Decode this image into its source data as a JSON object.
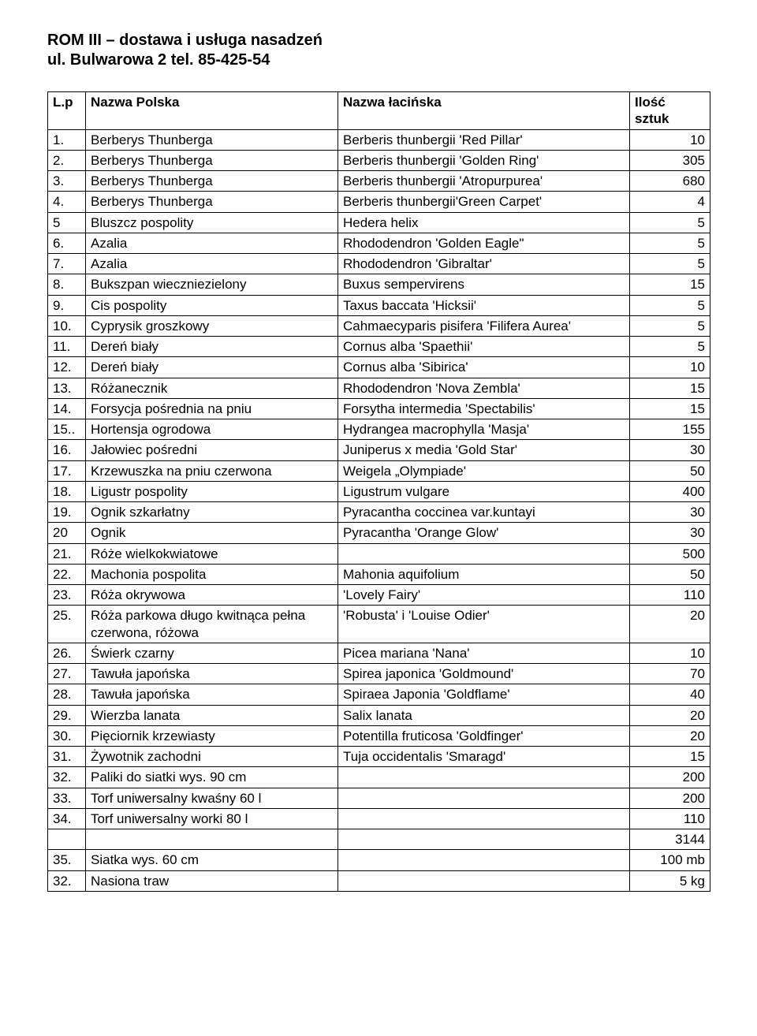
{
  "title_line1": "ROM III – dostawa i usługa nasadzeń",
  "title_line2": "ul. Bulwarowa 2    tel. 85-425-54",
  "columns": {
    "lp": "L.p",
    "pl": "Nazwa Polska",
    "la": "Nazwa łacińska",
    "qty1": "Ilość",
    "qty2": "sztuk"
  },
  "rows": [
    {
      "lp": "1.",
      "pl": "Berberys Thunberga",
      "la": "Berberis thunbergii 'Red Pillar'",
      "qty": "10"
    },
    {
      "lp": "2.",
      "pl": "Berberys Thunberga",
      "la": "Berberis thunbergii 'Golden Ring'",
      "qty": "305"
    },
    {
      "lp": "3.",
      "pl": "Berberys Thunberga",
      "la": "Berberis thunbergii 'Atropurpurea'",
      "qty": "680"
    },
    {
      "lp": "4.",
      "pl": "Berberys Thunberga",
      "la": "Berberis thunbergii'Green Carpet'",
      "qty": "4"
    },
    {
      "lp": "5",
      "pl": "Bluszcz pospolity",
      "la": "Hedera helix",
      "qty": "5"
    },
    {
      "lp": "6.",
      "pl": "Azalia",
      "la": "Rhododendron 'Golden Eagle\"",
      "qty": "5"
    },
    {
      "lp": "7.",
      "pl": "Azalia",
      "la": "Rhododendron 'Gibraltar'",
      "qty": "5"
    },
    {
      "lp": "8.",
      "pl": "Bukszpan wieczniezielony",
      "la": "Buxus sempervirens",
      "qty": "15"
    },
    {
      "lp": "9.",
      "pl": "Cis pospolity",
      "la": "Taxus baccata  'Hicksii'",
      "qty": "5"
    },
    {
      "lp": "10.",
      "pl": "Cyprysik groszkowy",
      "la": "Cahmaecyparis pisifera 'Filifera Aurea'",
      "qty": "5"
    },
    {
      "lp": "11.",
      "pl": "Dereń biały",
      "la": "Cornus alba 'Spaethii'",
      "qty": "5"
    },
    {
      "lp": "12.",
      "pl": "Dereń biały",
      "la": "Cornus alba 'Sibirica'",
      "qty": "10"
    },
    {
      "lp": "13.",
      "pl": "Różanecznik",
      "la": "Rhododendron 'Nova Zembla'",
      "qty": "15"
    },
    {
      "lp": "14.",
      "pl": "Forsycja pośrednia na pniu",
      "la": "Forsytha intermedia 'Spectabilis'",
      "qty": "15"
    },
    {
      "lp": "15..",
      "pl": "Hortensja ogrodowa",
      "la": "Hydrangea macrophylla 'Masja'",
      "qty": "155"
    },
    {
      "lp": "16.",
      "pl": "Jałowiec pośredni",
      "la": "Juniperus x media 'Gold Star'",
      "qty": "30"
    },
    {
      "lp": "17.",
      "pl": "Krzewuszka na pniu czerwona",
      "la": "Weigela „Olympiade'",
      "qty": "50"
    },
    {
      "lp": "18.",
      "pl": "Ligustr pospolity",
      "la": "Ligustrum vulgare",
      "qty": "400"
    },
    {
      "lp": "19.",
      "pl": "Ognik szkarłatny",
      "la": "Pyracantha coccinea var.kuntayi",
      "qty": "30"
    },
    {
      "lp": "20",
      "pl": "Ognik",
      "la": "Pyracantha 'Orange Glow'",
      "qty": "30"
    },
    {
      "lp": "21.",
      "pl": "Róże wielkokwiatowe",
      "la": "",
      "qty": "500"
    },
    {
      "lp": "22.",
      "pl": "Machonia pospolita",
      "la": "Mahonia aquifolium",
      "qty": "50"
    },
    {
      "lp": "23.",
      "pl": "Róża  okrywowa",
      "la": "'Lovely Fairy'",
      "qty": "110"
    },
    {
      "lp": "25.",
      "pl": "Róża parkowa długo kwitnąca pełna czerwona, różowa",
      "la": "'Robusta' i 'Louise Odier'",
      "qty": "20"
    },
    {
      "lp": "26.",
      "pl": "Świerk czarny",
      "la": "Picea mariana 'Nana'",
      "qty": "10"
    },
    {
      "lp": "27.",
      "pl": "Tawuła japońska",
      "la": "Spirea japonica 'Goldmound'",
      "qty": "70"
    },
    {
      "lp": "28.",
      "pl": "Tawuła japońska",
      "la": "Spiraea Japonia 'Goldflame'",
      "qty": "40"
    },
    {
      "lp": "29.",
      "pl": "Wierzba lanata",
      "la": "Salix lanata",
      "qty": "20"
    },
    {
      "lp": "30.",
      "pl": "Pięciornik krzewiasty",
      "la": "Potentilla fruticosa 'Goldfinger'",
      "qty": "20"
    },
    {
      "lp": "31.",
      "pl": "Żywotnik zachodni",
      "la": "Tuja occidentalis 'Smaragd'",
      "qty": "15"
    },
    {
      "lp": "32.",
      "pl": "Paliki do siatki wys. 90 cm",
      "la": "",
      "qty": "200"
    },
    {
      "lp": "33.",
      "pl": "Torf uniwersalny kwaśny 60 l",
      "la": "",
      "qty": "200"
    },
    {
      "lp": "34.",
      "pl": "Torf uniwersalny worki 80 l",
      "la": "",
      "qty": "110"
    },
    {
      "lp": "",
      "pl": "",
      "la": "",
      "qty": "3144"
    },
    {
      "lp": "35.",
      "pl": "Siatka  wys. 60 cm",
      "la": "",
      "qty": "100 mb"
    },
    {
      "lp": "32.",
      "pl": "Nasiona traw",
      "la": "",
      "qty": "5 kg"
    }
  ]
}
